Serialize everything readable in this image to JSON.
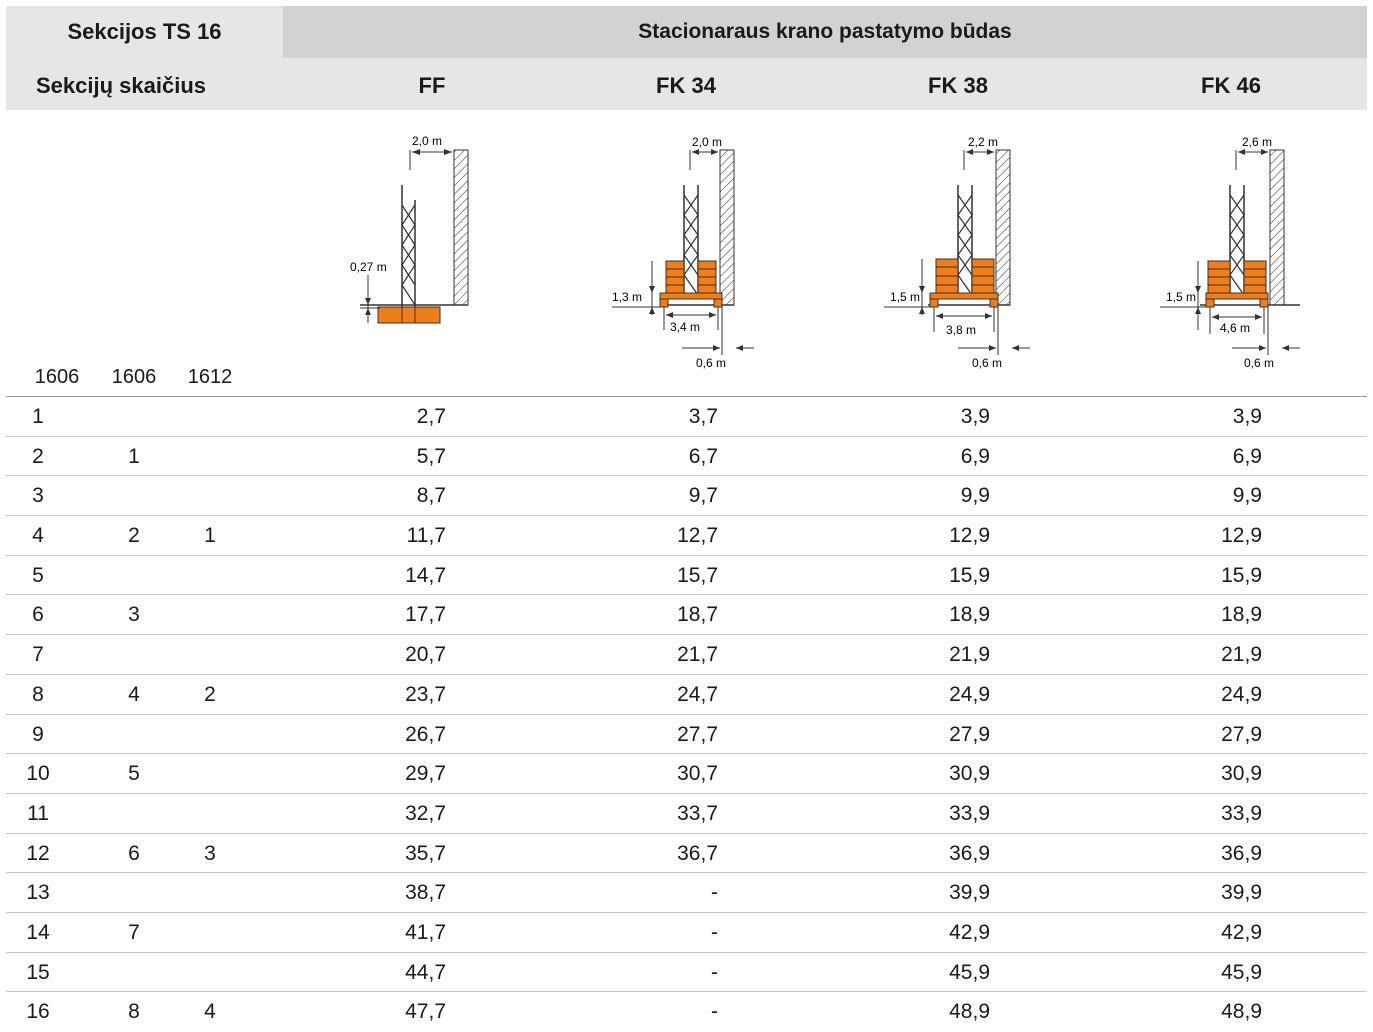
{
  "header": {
    "sections_label": "Sekcijos TS 16",
    "method_label": "Stacionaraus krano pastatymo būdas",
    "count_label": "Sekcijų skaičius",
    "columns": [
      "FF",
      "FK 34",
      "FK 38",
      "FK 46"
    ]
  },
  "sub_labels": [
    "1606",
    "1606",
    "1612"
  ],
  "diagrams": {
    "ff": {
      "top": "2,0 m",
      "side": "0,27 m"
    },
    "fk34": {
      "top": "2,0 m",
      "side": "1,3 m",
      "width": "3,4 m",
      "offset": "0,6 m"
    },
    "fk38": {
      "top": "2,2 m",
      "side": "1,5 m",
      "width": "3,8 m",
      "offset": "0,6 m"
    },
    "fk46": {
      "top": "2,6 m",
      "side": "1,5 m",
      "width": "4,6 m",
      "offset": "0,6 m"
    }
  },
  "colors": {
    "orange": "#f07d18",
    "header_light": "#e6e6e6",
    "header_dark": "#d2d2d2"
  },
  "rows": [
    {
      "a": "1",
      "b": "",
      "c": "",
      "ff": "2,7",
      "fk34": "3,7",
      "fk38": "3,9",
      "fk46": "3,9"
    },
    {
      "a": "2",
      "b": "1",
      "c": "",
      "ff": "5,7",
      "fk34": "6,7",
      "fk38": "6,9",
      "fk46": "6,9"
    },
    {
      "a": "3",
      "b": "",
      "c": "",
      "ff": "8,7",
      "fk34": "9,7",
      "fk38": "9,9",
      "fk46": "9,9"
    },
    {
      "a": "4",
      "b": "2",
      "c": "1",
      "ff": "11,7",
      "fk34": "12,7",
      "fk38": "12,9",
      "fk46": "12,9"
    },
    {
      "a": "5",
      "b": "",
      "c": "",
      "ff": "14,7",
      "fk34": "15,7",
      "fk38": "15,9",
      "fk46": "15,9"
    },
    {
      "a": "6",
      "b": "3",
      "c": "",
      "ff": "17,7",
      "fk34": "18,7",
      "fk38": "18,9",
      "fk46": "18,9"
    },
    {
      "a": "7",
      "b": "",
      "c": "",
      "ff": "20,7",
      "fk34": "21,7",
      "fk38": "21,9",
      "fk46": "21,9"
    },
    {
      "a": "8",
      "b": "4",
      "c": "2",
      "ff": "23,7",
      "fk34": "24,7",
      "fk38": "24,9",
      "fk46": "24,9"
    },
    {
      "a": "9",
      "b": "",
      "c": "",
      "ff": "26,7",
      "fk34": "27,7",
      "fk38": "27,9",
      "fk46": "27,9"
    },
    {
      "a": "10",
      "b": "5",
      "c": "",
      "ff": "29,7",
      "fk34": "30,7",
      "fk38": "30,9",
      "fk46": "30,9"
    },
    {
      "a": "11",
      "b": "",
      "c": "",
      "ff": "32,7",
      "fk34": "33,7",
      "fk38": "33,9",
      "fk46": "33,9"
    },
    {
      "a": "12",
      "b": "6",
      "c": "3",
      "ff": "35,7",
      "fk34": "36,7",
      "fk38": "36,9",
      "fk46": "36,9"
    },
    {
      "a": "13",
      "b": "",
      "c": "",
      "ff": "38,7",
      "fk34": "-",
      "fk38": "39,9",
      "fk46": "39,9"
    },
    {
      "a": "14",
      "b": "7",
      "c": "",
      "ff": "41,7",
      "fk34": "-",
      "fk38": "42,9",
      "fk46": "42,9"
    },
    {
      "a": "15",
      "b": "",
      "c": "",
      "ff": "44,7",
      "fk34": "-",
      "fk38": "45,9",
      "fk46": "45,9"
    },
    {
      "a": "16",
      "b": "8",
      "c": "4",
      "ff": "47,7",
      "fk34": "-",
      "fk38": "48,9",
      "fk46": "48,9"
    }
  ]
}
